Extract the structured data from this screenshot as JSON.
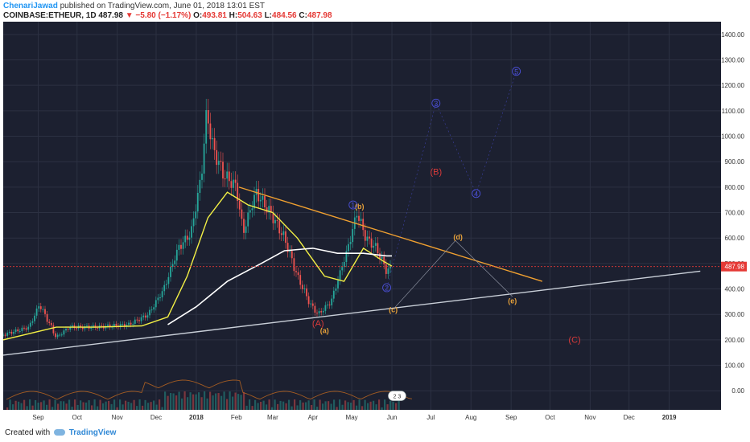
{
  "header": {
    "author": "ChenariJawad",
    "published": "published on TradingView.com, June 01, 2018 13:01 EST",
    "symbol": "COINBASE:ETHEUR, 1D",
    "last": "487.98",
    "change_arrow": "▼",
    "change": "−5.80 (−1.17%)",
    "o_label": "O:",
    "o": "493.81",
    "h_label": "H:",
    "h": "504.63",
    "l_label": "L:",
    "l": "484.56",
    "c_label": "C:",
    "c": "487.98"
  },
  "footer": {
    "created_with": "Created with",
    "brand": "TradingView"
  },
  "colors": {
    "background": "#1c2030",
    "grid": "#2c3142",
    "price_line": "#e53935",
    "trend_orange": "#f0a030",
    "support": "#c9cfd8",
    "ma_white": "#ffffff",
    "ma_yellow": "#f2ef45",
    "wave_blue": "#4a4fd6",
    "wave_red": "#d93a3a",
    "wave_orange": "#e8a23a",
    "bull": "#26a69a",
    "bear": "#ef5350"
  },
  "chart_data": {
    "type": "line",
    "instrument": "COINBASE:ETHEUR",
    "interval": "1D",
    "y_axis": {
      "ticks": [
        "1400.00",
        "1300.00",
        "1200.00",
        "1100.00",
        "1000.00",
        "900.00",
        "800.00",
        "700.00",
        "600.00",
        "500.00",
        "400.00",
        "300.00",
        "200.00",
        "100.00",
        "0.00"
      ],
      "tick_values": [
        1400,
        1300,
        1200,
        1100,
        1000,
        900,
        800,
        700,
        600,
        500,
        400,
        300,
        200,
        100,
        0
      ],
      "range": [
        -75,
        1450
      ],
      "position": "right"
    },
    "x_axis": {
      "labels": [
        "Sep",
        "Oct",
        "Nov",
        "Dec",
        "2018",
        "Feb",
        "Mar",
        "Apr",
        "May",
        "Jun",
        "Jul",
        "Aug",
        "Sep",
        "Oct",
        "Nov",
        "Dec",
        "2019"
      ],
      "range": [
        "2017-08-05",
        "2019-02-10"
      ]
    },
    "current_price": {
      "label": "487.98",
      "value": 487.98
    },
    "series": [
      {
        "x": [
          "2017-08-05",
          "2017-08-25",
          "2017-09-02",
          "2017-09-15",
          "2017-09-25",
          "2017-10-15",
          "2017-11-10",
          "2017-11-25",
          "2017-12-07",
          "2017-12-18",
          "2017-12-28",
          "2018-01-05",
          "2018-01-09",
          "2018-01-14",
          "2018-01-22",
          "2018-02-01",
          "2018-02-06",
          "2018-02-16",
          "2018-02-27",
          "2018-03-10",
          "2018-03-20",
          "2018-03-30",
          "2018-04-05",
          "2018-04-15",
          "2018-04-28",
          "2018-05-05",
          "2018-05-12",
          "2018-05-20",
          "2018-05-28",
          "2018-06-01"
        ],
        "values": [
          220,
          250,
          340,
          210,
          250,
          250,
          260,
          300,
          400,
          560,
          620,
          850,
          1100,
          950,
          850,
          800,
          620,
          780,
          700,
          600,
          450,
          340,
          300,
          350,
          560,
          700,
          600,
          560,
          470,
          488
        ]
      },
      {
        "name": "",
        "x": [
          "2017-08-05",
          "2017-09-15",
          "2017-10-15",
          "2017-11-20",
          "2017-12-10",
          "2017-12-25",
          "2018-01-10",
          "2018-01-25",
          "2018-02-10",
          "2018-03-01",
          "2018-03-20",
          "2018-04-10",
          "2018-04-25",
          "2018-05-10",
          "2018-05-25",
          "2018-06-01"
        ],
        "values": [
          200,
          250,
          250,
          255,
          290,
          450,
          680,
          780,
          730,
          700,
          600,
          450,
          430,
          560,
          510,
          490
        ]
      },
      {
        "name": "",
        "x": [
          "2017-12-10",
          "2018-01-01",
          "2018-01-25",
          "2018-02-20",
          "2018-03-10",
          "2018-04-01",
          "2018-04-20",
          "2018-05-10",
          "2018-05-28",
          "2018-06-01"
        ],
        "values": [
          260,
          330,
          430,
          500,
          550,
          560,
          540,
          540,
          530,
          530
        ]
      }
    ],
    "trendlines": [
      {
        "kind": "resistance",
        "x": [
          "2018-02-03",
          "2018-09-25"
        ],
        "y": [
          800,
          430
        ]
      },
      {
        "kind": "support",
        "x": [
          "2017-08-05",
          "2019-01-25"
        ],
        "y": [
          140,
          470
        ]
      }
    ],
    "wave_labels": [
      {
        "text": "(A)",
        "x": "2018-04-05",
        "y": 265
      },
      {
        "text": "(a)",
        "x": "2018-04-10",
        "y": 238
      },
      {
        "text": "(b)",
        "x": "2018-05-07",
        "y": 725
      },
      {
        "text": "(c)",
        "x": "2018-06-02",
        "y": 320
      },
      {
        "text": "(d)",
        "x": "2018-07-22",
        "y": 605
      },
      {
        "text": "(e)",
        "x": "2018-09-02",
        "y": 355
      },
      {
        "text": "(B)",
        "x": "2018-07-05",
        "y": 860
      },
      {
        "text": "(C)",
        "x": "2018-10-20",
        "y": 200
      },
      {
        "text": "1",
        "x": "2018-05-02",
        "y": 730
      },
      {
        "text": "2",
        "x": "2018-05-28",
        "y": 405
      },
      {
        "text": "3",
        "x": "2018-07-05",
        "y": 1130
      },
      {
        "text": "4",
        "x": "2018-08-05",
        "y": 775
      },
      {
        "text": "5",
        "x": "2018-09-05",
        "y": 1255
      }
    ],
    "badge": {
      "text": "2 3",
      "x": "2018-06-05",
      "y": -20
    }
  }
}
